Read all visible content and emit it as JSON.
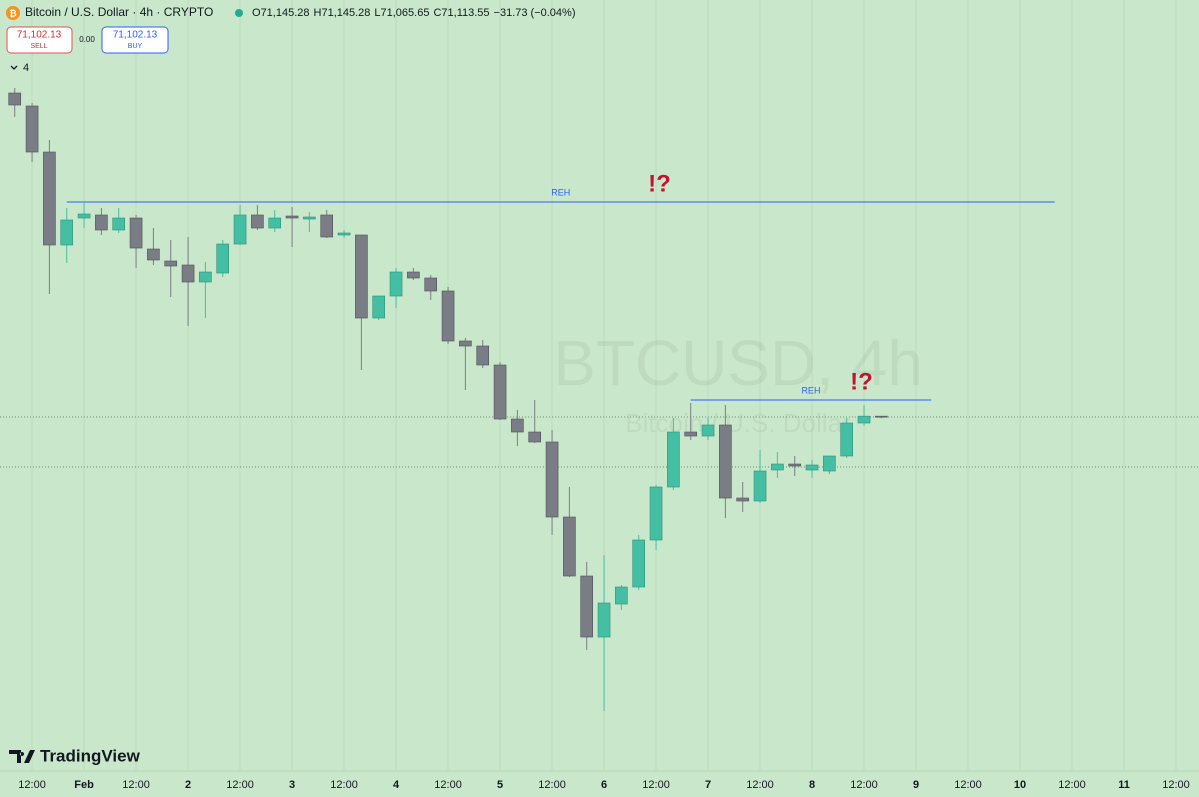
{
  "header": {
    "symbol": "Bitcoin / U.S. Dollar · 4h · CRYPTO",
    "quote": [
      {
        "key": "O",
        "value": "71,145.28"
      },
      {
        "key": "H",
        "value": "71,145.28"
      },
      {
        "key": "L",
        "value": "71,065.65"
      },
      {
        "key": "C",
        "value": "71,113.55"
      }
    ],
    "change": "−31.73 (−0.04%)",
    "sell": {
      "price": "71,102.13",
      "label": "SELL"
    },
    "spread": "0.00",
    "buy": {
      "price": "71,102.13",
      "label": "BUY"
    },
    "indicators": "4"
  },
  "watermark": {
    "symbol": "BTCUSD, 4h",
    "name": "Bitcoin / U.S. Dollar"
  },
  "logo": "TradingView",
  "chart_data": {
    "type": "candlestick",
    "x": [
      -16,
      -12,
      -8,
      -4,
      0,
      4,
      8,
      12,
      16,
      20,
      24,
      28,
      32,
      36,
      40,
      44,
      48,
      52,
      56,
      60,
      64,
      68,
      72,
      76,
      80,
      84,
      88,
      92,
      96,
      100,
      104,
      108,
      112,
      116,
      120,
      124,
      128,
      132,
      136,
      140,
      144,
      148,
      152,
      156,
      160,
      164,
      168,
      172,
      176,
      180,
      184
    ],
    "open": [
      83360,
      82869,
      81130,
      77615,
      78635,
      78749,
      78182,
      78635,
      77463,
      77010,
      76859,
      76216,
      76556,
      77652,
      78749,
      78257,
      78711,
      78597,
      78749,
      77993,
      77993,
      74855,
      75687,
      76594,
      76367,
      75876,
      73986,
      73797,
      73079,
      71037,
      70546,
      70168,
      67333,
      65103,
      62797,
      64044,
      64687,
      66464,
      68467,
      70546,
      70395,
      70811,
      68051,
      67938,
      69110,
      69336,
      69110,
      69072,
      69639,
      70886,
      71145.28
    ],
    "high": [
      83549,
      82982,
      81584,
      79013,
      79202,
      79013,
      79013,
      78749,
      78257,
      77804,
      77917,
      76972,
      77804,
      79127,
      79127,
      78938,
      79051,
      78862,
      78938,
      78182,
      77993,
      75687,
      76745,
      76745,
      76481,
      76027,
      74099,
      74024,
      73192,
      71378,
      71756,
      70622,
      68467,
      65632,
      65897,
      64763,
      66653,
      68543,
      71075,
      71642,
      71075,
      71567,
      68656,
      69866,
      69790,
      69639,
      69488,
      69639,
      71075,
      71567,
      71145.28
    ],
    "low": [
      82453,
      80752,
      75762,
      76934,
      78257,
      77993,
      78068,
      76745,
      76859,
      75649,
      74553,
      74855,
      76405,
      77615,
      78182,
      78106,
      77539,
      78106,
      77879,
      77879,
      72890,
      74780,
      75233,
      76292,
      75536,
      73872,
      72134,
      72965,
      71000,
      70017,
      70130,
      66653,
      65065,
      62306,
      60000,
      63818,
      64574,
      66086,
      68354,
      70244,
      70244,
      67295,
      67522,
      67862,
      68807,
      68883,
      68807,
      68958,
      69563,
      70773,
      71065.65
    ],
    "close": [
      82907,
      81130,
      77615,
      78560,
      78786,
      78182,
      78635,
      77501,
      77048,
      76821,
      76216,
      76594,
      77652,
      78749,
      78257,
      78635,
      78635,
      78673,
      77917,
      78068,
      74855,
      75687,
      76594,
      76367,
      75876,
      73986,
      73797,
      73079,
      71037,
      70546,
      70168,
      67333,
      65103,
      62797,
      64082,
      64687,
      66464,
      68467,
      70546,
      70395,
      70811,
      68051,
      67938,
      69072,
      69336,
      69261,
      69299,
      69639,
      70886,
      71145,
      71113.55
    ],
    "up_color": "#45bfa3",
    "down_color": "#7b7d86",
    "xlim": [
      -19.4,
      257.3
    ],
    "ylim": [
      57770,
      86876
    ],
    "xticks": [
      {
        "value": -12,
        "label": "12:00"
      },
      {
        "value": 0,
        "label": "Feb"
      },
      {
        "value": 12,
        "label": "12:00"
      },
      {
        "value": 24,
        "label": "2"
      },
      {
        "value": 36,
        "label": "12:00"
      },
      {
        "value": 48,
        "label": "3"
      },
      {
        "value": 60,
        "label": "12:00"
      },
      {
        "value": 72,
        "label": "4"
      },
      {
        "value": 84,
        "label": "12:00"
      },
      {
        "value": 96,
        "label": "5"
      },
      {
        "value": 108,
        "label": "12:00"
      },
      {
        "value": 120,
        "label": "6"
      },
      {
        "value": 132,
        "label": "12:00"
      },
      {
        "value": 144,
        "label": "7"
      },
      {
        "value": 156,
        "label": "12:00"
      },
      {
        "value": 168,
        "label": "8"
      },
      {
        "value": 180,
        "label": "12:00"
      },
      {
        "value": 192,
        "label": "9"
      },
      {
        "value": 204,
        "label": "12:00"
      },
      {
        "value": 216,
        "label": "10"
      },
      {
        "value": 228,
        "label": "12:00"
      },
      {
        "value": 240,
        "label": "11"
      },
      {
        "value": 252,
        "label": "12:00"
      }
    ],
    "grid": true,
    "levels": [
      {
        "label": "REH",
        "marker": "!?",
        "price": 79240,
        "from": -4,
        "to": 224,
        "color": "#2962ff"
      },
      {
        "label": "REH",
        "marker": "!?",
        "price": 71756,
        "from": 140,
        "to": 195.5,
        "color": "#2962ff"
      }
    ],
    "dotted_levels": [
      69223
    ]
  }
}
